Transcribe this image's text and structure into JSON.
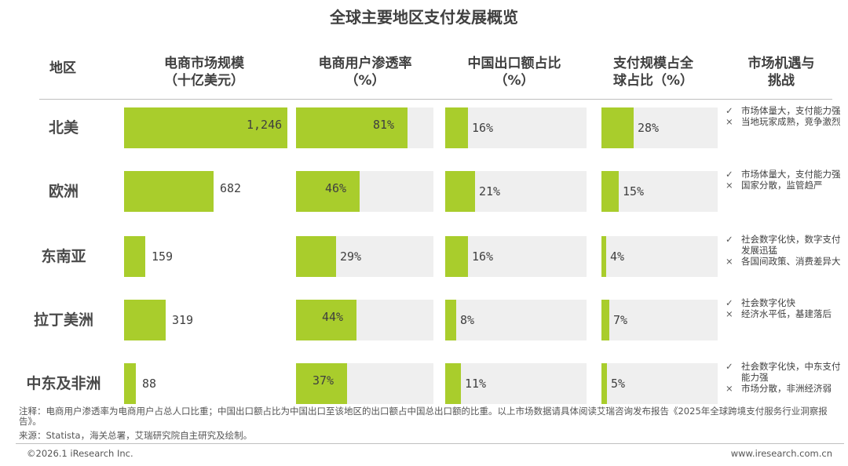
{
  "title": "全球主要地区支付发展概览",
  "headers": {
    "region": "地区",
    "market_size": "电商市场规模\n（十亿美元）",
    "penetration": "电商用户渗透率\n（%）",
    "china_export": "中国出口额占比\n（%）",
    "payment_share": "支付规模占全\n球占比（%）",
    "opportunity": "市场机遇与\n挑战"
  },
  "chart_data": {
    "type": "table",
    "title": "全球主要地区支付发展概览",
    "regions": [
      "北美",
      "欧洲",
      "东南亚",
      "拉丁美洲",
      "中东及非洲"
    ],
    "series": [
      {
        "name": "电商市场规模（十亿美元）",
        "values": [
          1246,
          682,
          159,
          319,
          88
        ],
        "labels": [
          "1,246",
          "682",
          "159",
          "319",
          "88"
        ],
        "max": 1246
      },
      {
        "name": "电商用户渗透率（%）",
        "values": [
          81,
          46,
          29,
          44,
          37
        ],
        "labels": [
          "81%",
          "46%",
          "29%",
          "44%",
          "37%"
        ],
        "max": 100
      },
      {
        "name": "中国出口额占比（%）",
        "values": [
          16,
          21,
          16,
          8,
          11
        ],
        "labels": [
          "16%",
          "21%",
          "16%",
          "8%",
          "11%"
        ],
        "max": 100
      },
      {
        "name": "支付规模占全球占比（%）",
        "values": [
          28,
          15,
          4,
          7,
          5
        ],
        "labels": [
          "28%",
          "15%",
          "4%",
          "7%",
          "5%"
        ],
        "max": 100
      }
    ]
  },
  "opportunities": [
    {
      "pro": "市场体量大，支付能力强",
      "con": "当地玩家成熟，竞争激烈"
    },
    {
      "pro": "市场体量大，支付能力强",
      "con": "国家分散，监管趋严"
    },
    {
      "pro": "社会数字化快，数字支付发展迅猛",
      "con": "各国间政策、消费差异大"
    },
    {
      "pro": "社会数字化快",
      "con": "经济水平低，基建落后"
    },
    {
      "pro": "社会数字化快，中东支付能力强",
      "con": "市场分散，非洲经济弱"
    }
  ],
  "marks": {
    "pro": "✓",
    "con": "×"
  },
  "colors": {
    "bar": "#a9cd2c",
    "track": "#efefef"
  },
  "note": "注释：电商用户渗透率为电商用户占总人口比重；中国出口额占比为中国出口至该地区的出口额占中国总出口额的比重。以上市场数据请具体阅读艾瑞咨询发布报告《2025年全球跨境支付服务行业洞察报告》。",
  "source": "来源：Statista，海关总署，艾瑞研究院自主研究及绘制。",
  "copyright": "©2026.1 iResearch Inc.",
  "website": "www.iresearch.com.cn"
}
